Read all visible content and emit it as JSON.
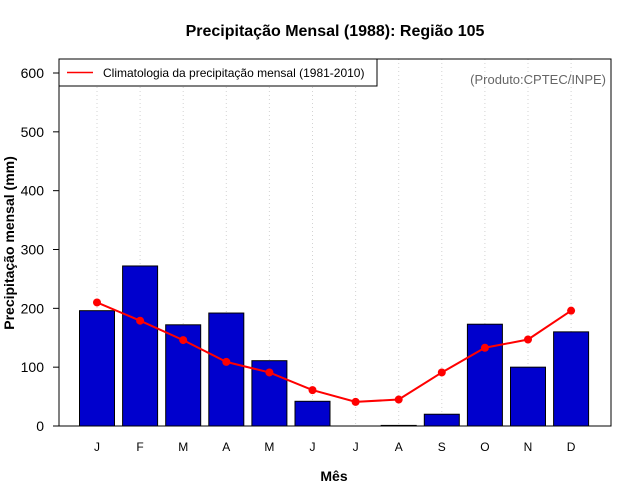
{
  "chart_data": {
    "type": "bar",
    "title": "Precipitação Mensal (1988): Região 105",
    "xlabel": "Mês",
    "ylabel": "Precipitação mensal (mm)",
    "categories": [
      "J",
      "F",
      "M",
      "A",
      "M",
      "J",
      "J",
      "A",
      "S",
      "O",
      "N",
      "D"
    ],
    "ylim": [
      0,
      600
    ],
    "yticks": [
      0,
      100,
      200,
      300,
      400,
      500,
      600
    ],
    "grid": "vertical dotted",
    "series": [
      {
        "name": "Precipitação mensal (1988)",
        "kind": "bar",
        "color": "#0000cd",
        "values": [
          196,
          272,
          172,
          192,
          111,
          42,
          0,
          1,
          20,
          173,
          100,
          160
        ]
      },
      {
        "name": "Climatologia da precipitação mensal (1981-2010)",
        "kind": "line",
        "color": "#ff0000",
        "values": [
          210,
          179,
          146,
          109,
          91,
          61,
          41,
          45,
          91,
          133,
          147,
          196
        ]
      }
    ],
    "legend": {
      "position": "top-left",
      "entries": [
        "Climatologia da precipitação mensal (1981-2010)"
      ]
    },
    "annotation": "(Produto:CPTEC/INPE)"
  }
}
